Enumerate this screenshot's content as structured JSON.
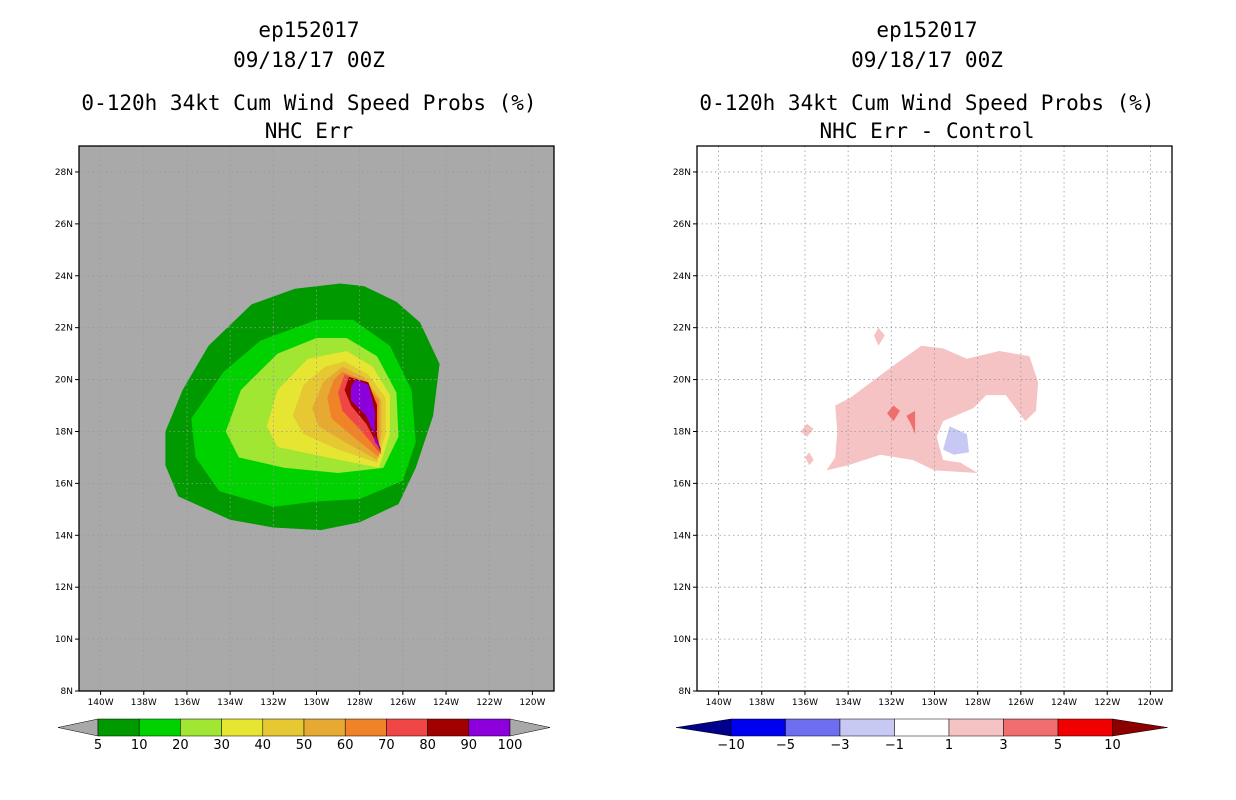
{
  "chart_data": [
    {
      "type": "filled-contour-map",
      "title_lines": [
        "ep152017",
        "09/18/17 00Z",
        "0-120h 34kt Cum Wind Speed Probs (%)",
        "NHC Err"
      ],
      "x_range_lon_west": [
        141,
        119
      ],
      "y_range_lat_north": [
        8,
        29
      ],
      "x_ticks": [
        "140W",
        "138W",
        "136W",
        "134W",
        "132W",
        "130W",
        "128W",
        "126W",
        "124W",
        "122W",
        "120W"
      ],
      "y_ticks": [
        "8N",
        "10N",
        "12N",
        "14N",
        "16N",
        "18N",
        "20N",
        "22N",
        "24N",
        "26N",
        "28N"
      ],
      "background_color": "#a9a9a9",
      "grid": true,
      "colorbar": {
        "labels": [
          "5",
          "10",
          "20",
          "30",
          "40",
          "50",
          "60",
          "70",
          "80",
          "90",
          "100"
        ],
        "colors": [
          "#009a00",
          "#00d200",
          "#a0e632",
          "#e6e632",
          "#e6c832",
          "#e6aa32",
          "#f08228",
          "#f04646",
          "#a00000",
          "#8c00dc"
        ]
      },
      "regions": [
        {
          "level": 5,
          "color": "#009a00",
          "polygon": [
            [
              128.9,
              23.7
            ],
            [
              127.8,
              23.6
            ],
            [
              126.3,
              23.0
            ],
            [
              125.2,
              22.2
            ],
            [
              124.3,
              20.6
            ],
            [
              124.6,
              18.6
            ],
            [
              125.4,
              16.6
            ],
            [
              126.2,
              15.2
            ],
            [
              128.0,
              14.5
            ],
            [
              129.8,
              14.2
            ],
            [
              132.0,
              14.3
            ],
            [
              134.0,
              14.6
            ],
            [
              136.4,
              15.5
            ],
            [
              137.0,
              16.7
            ],
            [
              137.0,
              18.0
            ],
            [
              136.2,
              19.6
            ],
            [
              135.0,
              21.3
            ],
            [
              133.0,
              22.9
            ],
            [
              131.0,
              23.5
            ]
          ]
        },
        {
          "level": 10,
          "color": "#00d200",
          "polygon": [
            [
              128.3,
              22.3
            ],
            [
              126.6,
              21.3
            ],
            [
              125.6,
              19.6
            ],
            [
              125.4,
              17.6
            ],
            [
              126.0,
              16.1
            ],
            [
              128.0,
              15.4
            ],
            [
              130.0,
              15.3
            ],
            [
              132.0,
              15.1
            ],
            [
              134.5,
              15.7
            ],
            [
              135.6,
              17.0
            ],
            [
              135.8,
              18.5
            ],
            [
              134.3,
              20.3
            ],
            [
              132.6,
              21.5
            ],
            [
              130.0,
              22.3
            ]
          ]
        },
        {
          "level": 20,
          "color": "#a0e632",
          "polygon": [
            [
              128.6,
              21.6
            ],
            [
              127.2,
              20.9
            ],
            [
              126.3,
              19.5
            ],
            [
              126.2,
              17.8
            ],
            [
              126.9,
              16.6
            ],
            [
              129.0,
              16.4
            ],
            [
              131.5,
              16.6
            ],
            [
              133.6,
              17.0
            ],
            [
              134.2,
              18.0
            ],
            [
              133.5,
              19.6
            ],
            [
              131.8,
              21.0
            ],
            [
              130.0,
              21.6
            ]
          ]
        },
        {
          "level": 30,
          "color": "#e6e632",
          "polygon": [
            [
              128.6,
              21.1
            ],
            [
              127.4,
              20.5
            ],
            [
              126.6,
              19.4
            ],
            [
              126.6,
              17.9
            ],
            [
              127.1,
              16.6
            ],
            [
              129.5,
              17.0
            ],
            [
              131.8,
              17.4
            ],
            [
              132.3,
              18.2
            ],
            [
              131.8,
              19.6
            ],
            [
              130.4,
              20.8
            ]
          ]
        },
        {
          "level": 40,
          "color": "#e6c832",
          "polygon": [
            [
              128.7,
              20.7
            ],
            [
              127.6,
              20.2
            ],
            [
              126.8,
              19.3
            ],
            [
              126.8,
              17.9
            ],
            [
              127.2,
              16.8
            ],
            [
              129.0,
              17.3
            ],
            [
              130.6,
              17.9
            ],
            [
              131.1,
              18.6
            ],
            [
              130.6,
              19.8
            ],
            [
              129.6,
              20.5
            ]
          ]
        },
        {
          "level": 50,
          "color": "#e6aa32",
          "polygon": [
            [
              128.8,
              20.5
            ],
            [
              127.8,
              20.1
            ],
            [
              127.0,
              19.2
            ],
            [
              127.0,
              17.9
            ],
            [
              127.2,
              16.9
            ],
            [
              128.7,
              17.6
            ],
            [
              129.9,
              18.2
            ],
            [
              130.2,
              18.9
            ],
            [
              129.7,
              19.9
            ]
          ]
        },
        {
          "level": 60,
          "color": "#f08228",
          "polygon": [
            [
              128.8,
              20.3
            ],
            [
              127.9,
              20.0
            ],
            [
              127.1,
              19.2
            ],
            [
              127.1,
              17.9
            ],
            [
              127.1,
              17.0
            ],
            [
              128.3,
              17.8
            ],
            [
              129.3,
              18.5
            ],
            [
              129.5,
              19.3
            ],
            [
              129.2,
              20.0
            ]
          ]
        },
        {
          "level": 70,
          "color": "#f04646",
          "polygon": [
            [
              128.7,
              20.2
            ],
            [
              127.9,
              19.9
            ],
            [
              127.2,
              19.1
            ],
            [
              127.2,
              17.9
            ],
            [
              127.0,
              17.1
            ],
            [
              128.0,
              18.1
            ],
            [
              128.8,
              18.8
            ],
            [
              129.0,
              19.5
            ]
          ]
        },
        {
          "level": 80,
          "color": "#a00000",
          "polygon": [
            [
              128.5,
              20.1
            ],
            [
              127.6,
              19.9
            ],
            [
              127.2,
              19.0
            ],
            [
              127.2,
              17.8
            ],
            [
              127.0,
              17.2
            ],
            [
              127.7,
              18.3
            ],
            [
              128.4,
              19.0
            ],
            [
              128.7,
              19.6
            ]
          ]
        },
        {
          "level": 90,
          "color": "#8c00dc",
          "polygon": [
            [
              128.2,
              20.0
            ],
            [
              127.6,
              19.8
            ],
            [
              127.3,
              18.8
            ],
            [
              127.3,
              17.6
            ],
            [
              127.0,
              17.3
            ],
            [
              127.7,
              18.6
            ],
            [
              128.4,
              19.2
            ],
            [
              128.4,
              19.7
            ]
          ]
        }
      ]
    },
    {
      "type": "filled-contour-map",
      "title_lines": [
        "ep152017",
        "09/18/17 00Z",
        "0-120h 34kt Cum Wind Speed Probs (%)",
        "NHC Err - Control"
      ],
      "x_range_lon_west": [
        141,
        119
      ],
      "y_range_lat_north": [
        8,
        29
      ],
      "x_ticks": [
        "140W",
        "138W",
        "136W",
        "134W",
        "132W",
        "130W",
        "128W",
        "126W",
        "124W",
        "122W",
        "120W"
      ],
      "y_ticks": [
        "8N",
        "10N",
        "12N",
        "14N",
        "16N",
        "18N",
        "20N",
        "22N",
        "24N",
        "26N",
        "28N"
      ],
      "background_color": "#ffffff",
      "grid": true,
      "colorbar": {
        "labels": [
          "-10",
          "-5",
          "-3",
          "-1",
          "1",
          "3",
          "5",
          "10"
        ],
        "colors": [
          "#00008c",
          "#0000f0",
          "#6e6ef0",
          "#c8c8f5",
          "#ffffff",
          "#f5c3c3",
          "#f06e6e",
          "#f00000",
          "#8c0000"
        ]
      },
      "regions": [
        {
          "level": 1,
          "color": "#f5c3c3",
          "polygon": [
            [
              133.9,
              19.3
            ],
            [
              131.8,
              20.6
            ],
            [
              130.6,
              21.3
            ],
            [
              129.6,
              21.2
            ],
            [
              128.5,
              20.8
            ],
            [
              127.0,
              21.1
            ],
            [
              125.6,
              20.9
            ],
            [
              125.2,
              19.9
            ],
            [
              125.3,
              18.8
            ],
            [
              125.8,
              18.4
            ],
            [
              126.7,
              19.4
            ],
            [
              127.6,
              19.4
            ],
            [
              128.2,
              18.9
            ],
            [
              129.6,
              18.4
            ],
            [
              129.9,
              17.8
            ],
            [
              129.6,
              16.9
            ],
            [
              128.8,
              16.8
            ],
            [
              128.0,
              16.4
            ],
            [
              130.0,
              16.5
            ],
            [
              131.0,
              16.9
            ],
            [
              132.5,
              17.1
            ],
            [
              134.0,
              16.7
            ],
            [
              135.0,
              16.5
            ],
            [
              134.6,
              17.0
            ],
            [
              134.5,
              18.0
            ],
            [
              134.6,
              19.0
            ]
          ]
        },
        {
          "level": 1,
          "color": "#f5c3c3",
          "polygon": [
            [
              132.6,
              22.0
            ],
            [
              132.3,
              21.7
            ],
            [
              132.6,
              21.3
            ],
            [
              132.8,
              21.7
            ]
          ]
        },
        {
          "level": 1,
          "color": "#f5c3c3",
          "polygon": [
            [
              135.9,
              18.3
            ],
            [
              135.6,
              18.1
            ],
            [
              135.9,
              17.8
            ],
            [
              136.2,
              18.0
            ]
          ]
        },
        {
          "level": 1,
          "color": "#f5c3c3",
          "polygon": [
            [
              135.8,
              17.2
            ],
            [
              135.6,
              16.9
            ],
            [
              135.8,
              16.7
            ],
            [
              136.0,
              17.0
            ]
          ]
        },
        {
          "level": 3,
          "color": "#f06e6e",
          "polygon": [
            [
              131.9,
              19.0
            ],
            [
              131.6,
              18.8
            ],
            [
              131.9,
              18.4
            ],
            [
              132.2,
              18.7
            ]
          ]
        },
        {
          "level": 3,
          "color": "#f06e6e",
          "polygon": [
            [
              130.9,
              18.8
            ],
            [
              131.3,
              18.6
            ],
            [
              131.1,
              18.3
            ],
            [
              130.9,
              17.9
            ]
          ]
        },
        {
          "level": -3,
          "color": "#c8c8f5",
          "polygon": [
            [
              129.3,
              18.2
            ],
            [
              128.5,
              17.9
            ],
            [
              128.4,
              17.2
            ],
            [
              129.1,
              17.1
            ],
            [
              129.6,
              17.3
            ]
          ]
        }
      ]
    }
  ]
}
